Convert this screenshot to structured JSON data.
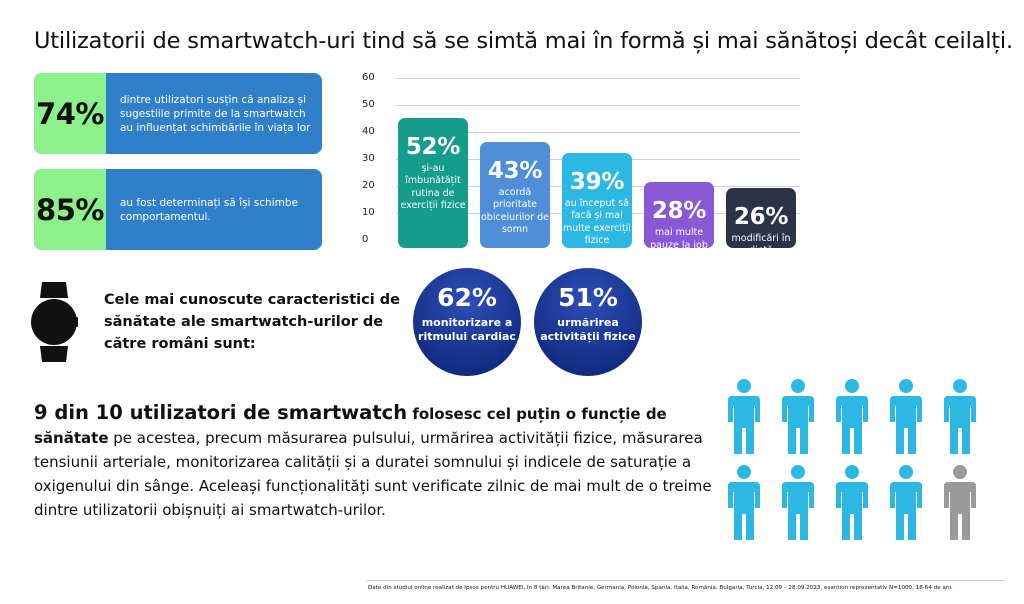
{
  "title": "Utilizatorii de smartwatch-uri tind să se simtă mai în formă și mai sănătoși decât ceilalți.",
  "stat_cards": [
    {
      "pct": "74%",
      "text": "dintre utilizatori susțin că analiza și sugestiile primite de la smartwatch au influențat schimbările în viața lor"
    },
    {
      "pct": "85%",
      "text": "au fost determinați să își schimbe comportamentul."
    }
  ],
  "chart_data": {
    "type": "bar",
    "title": "",
    "xlabel": "",
    "ylabel": "",
    "ylim": [
      0,
      60
    ],
    "yticks": [
      "0",
      "10",
      "20",
      "30",
      "40",
      "50",
      "60"
    ],
    "categories": [
      "și-au îmbunătățit rutina de exerciții fizice",
      "acordă prioritate obiceiurilor de somn",
      "au început să facă și mai multe exerciții fizice",
      "mai multe pauze la job",
      "modificări în dietă"
    ],
    "values": [
      52,
      43,
      39,
      28,
      26
    ],
    "value_labels": [
      "52%",
      "43%",
      "39%",
      "28%",
      "26%"
    ],
    "colors": [
      "#169c8c",
      "#4e8fd8",
      "#2cb8e3",
      "#8a57d6",
      "#2a3348"
    ]
  },
  "features": {
    "heading": "Cele mai cunoscute caracteristici de sănătate ale smartwatch-urilor de către români sunt:",
    "icon": "smartwatch-icon",
    "items": [
      {
        "pct": "62%",
        "label": "monitorizare a ritmului cardiac"
      },
      {
        "pct": "51%",
        "label": "urmărirea activității fizice"
      }
    ]
  },
  "summary": {
    "highlight": "9 din 10 utilizatori de smartwatch",
    "bold_rest": " folosesc cel puțin o funcție de sănătate",
    "text": " pe acestea, precum măsurarea pulsului, urmărirea activității fizice, măsurarea tensiunii arteriale, monitorizarea calității și a duratei somnului și indicele de saturație a oxigenului din sânge. Aceleași funcționalități sunt verificate zilnic de mai mult de o treime dintre utilizatorii obișnuiți ai smartwatch-urilor."
  },
  "people": {
    "icon": "person-icon",
    "total": 10,
    "highlighted": 9,
    "color_on": "#2cb8e3",
    "color_off": "#9a9a9a"
  },
  "footnote": "Date din studiul online realizat de Ipsos pentru HUAWEI, în 8 țări: Marea Britanie, Germania, Polonia, Spania, Italia, România, Bulgaria, Turcia, 12.09 – 28.09.2023, eșantion reprezentativ N=1000, 18-64 de ani."
}
